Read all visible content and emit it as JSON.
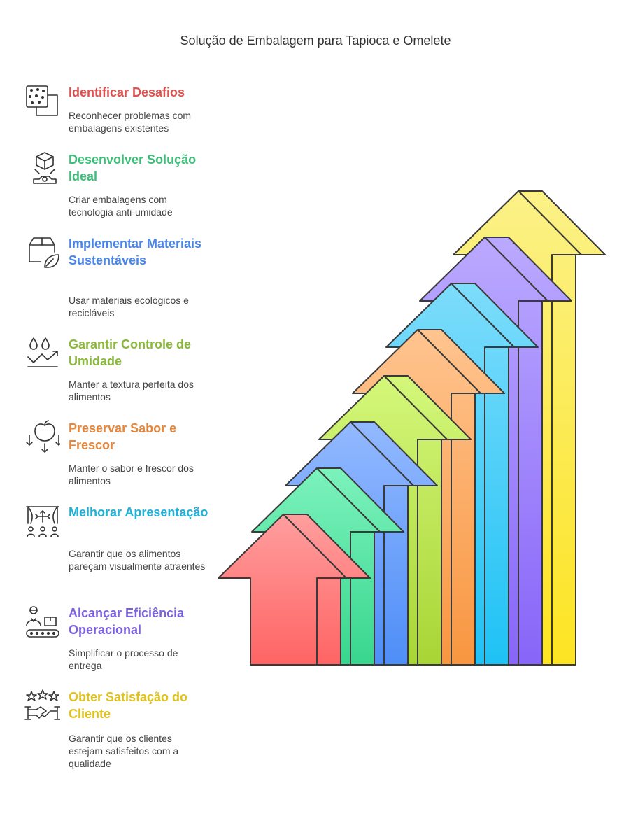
{
  "title": "Solução de Embalagem para Tapioca e Omelete",
  "steps": [
    {
      "heading": "Identificar Desafios",
      "description": "Reconhecer problemas com embalagens existentes",
      "color": "#e0504f",
      "icon": "dotted-squares-icon"
    },
    {
      "heading": "Desenvolver Solução Ideal",
      "description": "Criar embalagens com tecnologia anti-umidade",
      "color": "#3dbf7a",
      "icon": "cube-on-hand-icon"
    },
    {
      "heading": "Implementar Materiais Sustentáveis",
      "description": "Usar materiais ecológicos e recicláveis",
      "color": "#4a86e8",
      "icon": "box-leaf-icon"
    },
    {
      "heading": "Garantir Controle de Umidade",
      "description": "Manter a textura perfeita dos alimentos",
      "color": "#8ab83a",
      "icon": "droplets-trend-icon"
    },
    {
      "heading": "Preservar Sabor e Frescor",
      "description": "Manter o sabor e frescor dos alimentos",
      "color": "#e5863a",
      "icon": "apple-arrows-icon"
    },
    {
      "heading": "Melhorar Apresentação",
      "description": "Garantir que os alimentos pareçam visualmente atraentes",
      "color": "#1fb1d8",
      "icon": "stage-audience-icon"
    },
    {
      "heading": "Alcançar Eficiência Operacional",
      "description": "Simplificar o processo de entrega",
      "color": "#7b61e0",
      "icon": "worker-conveyor-icon"
    },
    {
      "heading": "Obter Satisfação do Cliente",
      "description": "Garantir que os clientes estejam satisfeitos com a qualidade",
      "color": "#e0c21a",
      "icon": "stars-handshake-icon"
    }
  ],
  "arrows": [
    {
      "name": "arrow-identificar",
      "top": "#ff9e9e",
      "bottom": "#ff6464"
    },
    {
      "name": "arrow-desenvolver",
      "top": "#7cf2bc",
      "bottom": "#38d68e"
    },
    {
      "name": "arrow-implementar",
      "top": "#93b9ff",
      "bottom": "#4e8ef7"
    },
    {
      "name": "arrow-umidade",
      "top": "#d4f77a",
      "bottom": "#a8d535"
    },
    {
      "name": "arrow-sabor",
      "top": "#ffc48f",
      "bottom": "#f89640"
    },
    {
      "name": "arrow-apresentacao",
      "top": "#7ddcfb",
      "bottom": "#1ec2f5"
    },
    {
      "name": "arrow-eficiencia",
      "top": "#bba9ff",
      "bottom": "#8765f8"
    },
    {
      "name": "arrow-satisfacao",
      "top": "#fbf187",
      "bottom": "#fde422"
    }
  ]
}
